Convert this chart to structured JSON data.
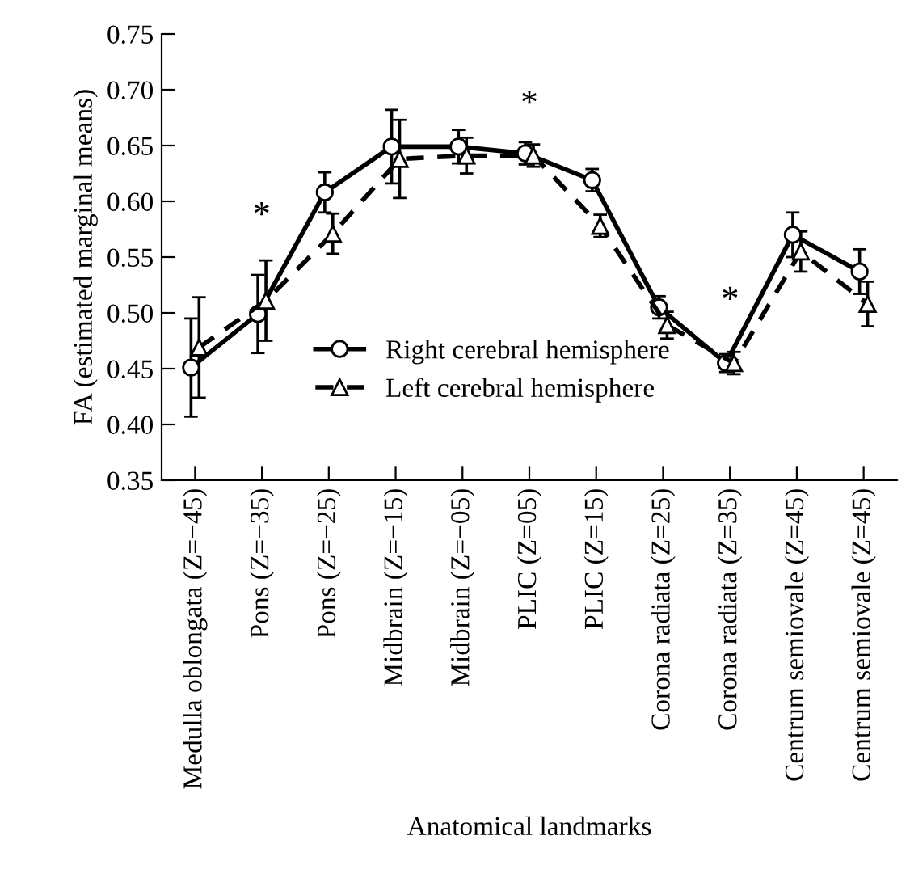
{
  "chart_data": {
    "type": "line",
    "xlabel": "Anatomical landmarks",
    "ylabel": "FA (estimated marginal means)",
    "categories": [
      "Medulla oblongata (Z=−45)",
      "Pons (Z=−35)",
      "Pons (Z=−25)",
      "Midbrain (Z=−15)",
      "Midbrain (Z=−05)",
      "PLIC (Z=05)",
      "PLIC (Z=15)",
      "Corona radiata (Z=25)",
      "Corona radiata (Z=35)",
      "Centrum semiovale (Z=45)",
      "Centrum semiovale (Z=45)"
    ],
    "series": [
      {
        "name": "Right cerebral hemisphere",
        "color": "#000000",
        "marker": "circle",
        "line_style": "solid",
        "values": [
          0.451,
          0.499,
          0.608,
          0.649,
          0.649,
          0.643,
          0.619,
          0.505,
          0.455,
          0.57,
          0.537
        ],
        "errors": [
          0.044,
          0.035,
          0.018,
          0.033,
          0.015,
          0.01,
          0.01,
          0.01,
          0.008,
          0.02,
          0.02
        ]
      },
      {
        "name": "Left cerebral hemisphere",
        "color": "#000000",
        "marker": "triangle",
        "line_style": "dashed",
        "values": [
          0.469,
          0.511,
          0.571,
          0.638,
          0.641,
          0.641,
          0.578,
          0.489,
          0.455,
          0.555,
          0.508
        ],
        "errors": [
          0.045,
          0.036,
          0.018,
          0.035,
          0.016,
          0.01,
          0.01,
          0.012,
          0.01,
          0.018,
          0.02
        ]
      }
    ],
    "ylim": [
      0.35,
      0.75
    ],
    "yticks": [
      {
        "value": 0.35,
        "label": "0.35"
      },
      {
        "value": 0.4,
        "label": "0.40"
      },
      {
        "value": 0.45,
        "label": "0.45"
      },
      {
        "value": 0.5,
        "label": "0.50"
      },
      {
        "value": 0.55,
        "label": "0.55"
      },
      {
        "value": 0.6,
        "label": "0.60"
      },
      {
        "value": 0.65,
        "label": "0.65"
      },
      {
        "value": 0.7,
        "label": "0.70"
      },
      {
        "value": 0.75,
        "label": "0.75"
      }
    ],
    "annotations": [
      "*",
      "*",
      "*"
    ],
    "legend": "bottom",
    "grid": false
  }
}
